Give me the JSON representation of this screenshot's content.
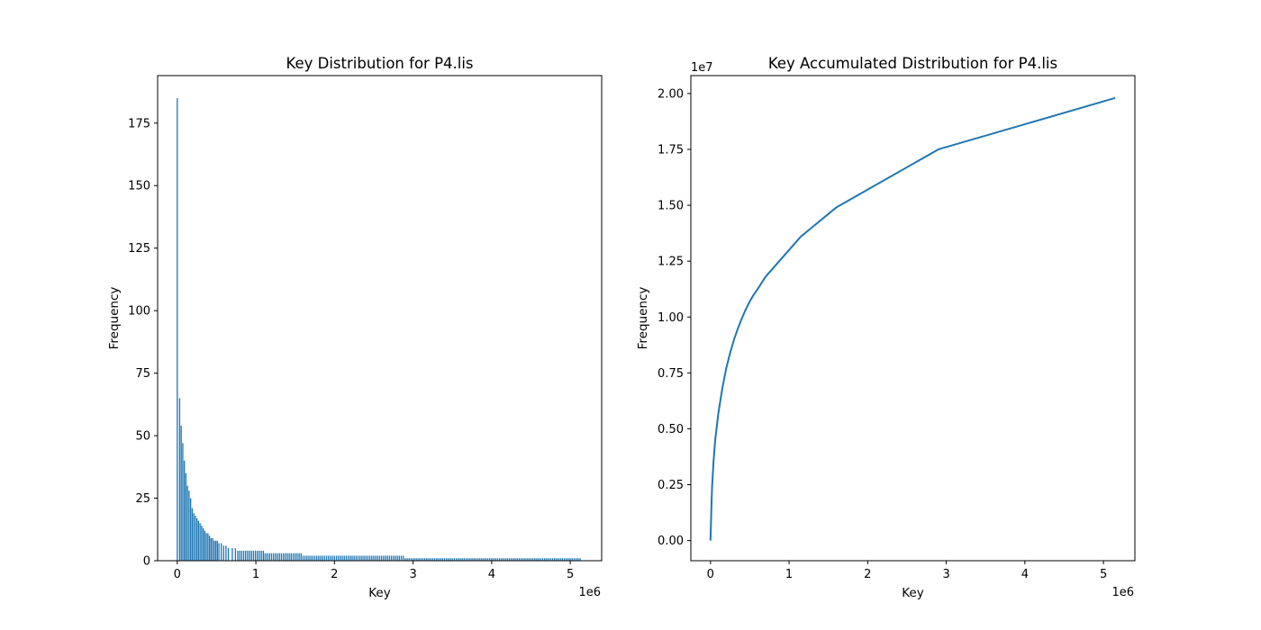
{
  "chart_data": [
    {
      "type": "bar",
      "title": "Key Distribution for P4.lis",
      "xlabel": "Key",
      "ylabel": "Frequency",
      "x_offset_label": "1e6",
      "xlim": [
        -250000,
        5400000
      ],
      "ylim": [
        0,
        194
      ],
      "xticks": [
        0,
        1000000,
        2000000,
        3000000,
        4000000,
        5000000
      ],
      "xtick_labels": [
        "0",
        "1",
        "2",
        "3",
        "4",
        "5"
      ],
      "yticks": [
        0,
        25,
        50,
        75,
        100,
        125,
        150,
        175
      ],
      "ytick_labels": [
        "0",
        "25",
        "50",
        "75",
        "100",
        "125",
        "150",
        "175"
      ],
      "bar_color": "#1f77b4",
      "bar_width_key": 20000,
      "grid": false,
      "series_points": [
        [
          1,
          185
        ],
        [
          30000,
          65
        ],
        [
          50000,
          54
        ],
        [
          70000,
          47
        ],
        [
          90000,
          40
        ],
        [
          110000,
          35
        ],
        [
          130000,
          30
        ],
        [
          150000,
          28
        ],
        [
          170000,
          25
        ],
        [
          190000,
          21
        ],
        [
          210000,
          19
        ],
        [
          230000,
          18
        ],
        [
          250000,
          17
        ],
        [
          270000,
          16
        ],
        [
          290000,
          15
        ],
        [
          310000,
          14
        ],
        [
          330000,
          13
        ],
        [
          350000,
          12
        ],
        [
          370000,
          11
        ],
        [
          390000,
          11
        ],
        [
          410000,
          10
        ],
        [
          430000,
          9
        ],
        [
          450000,
          9
        ],
        [
          470000,
          8
        ],
        [
          490000,
          8
        ],
        [
          510000,
          8
        ],
        [
          530000,
          7
        ],
        [
          560000,
          7
        ],
        [
          590000,
          6
        ],
        [
          620000,
          6
        ],
        [
          650000,
          5
        ],
        [
          700000,
          5
        ],
        [
          740000,
          5
        ]
      ],
      "tail_segments": [
        {
          "from": 770000,
          "to": 1100000,
          "value": 4
        },
        {
          "from": 1100000,
          "to": 1600000,
          "value": 3
        },
        {
          "from": 1600000,
          "to": 2900000,
          "value": 2
        },
        {
          "from": 2900000,
          "to": 5150000,
          "value": 1
        }
      ],
      "tail_spacing": 25000
    },
    {
      "type": "line",
      "title": "Key Accumulated Distribution for P4.lis",
      "xlabel": "Key",
      "ylabel": "Frequency",
      "x_offset_label": "1e6",
      "y_offset_label": "1e7",
      "xlim": [
        -250000,
        5400000
      ],
      "ylim": [
        -900000,
        20800000
      ],
      "xticks": [
        0,
        1000000,
        2000000,
        3000000,
        4000000,
        5000000
      ],
      "xtick_labels": [
        "0",
        "1",
        "2",
        "3",
        "4",
        "5"
      ],
      "yticks": [
        0,
        2500000,
        5000000,
        7500000,
        10000000,
        12500000,
        15000000,
        17500000,
        20000000
      ],
      "ytick_labels": [
        "0.00",
        "0.25",
        "0.50",
        "0.75",
        "1.00",
        "1.25",
        "1.50",
        "1.75",
        "2.00"
      ],
      "line_color": "#1f77b4",
      "grid": false,
      "x": [
        0,
        10000,
        20000,
        40000,
        60000,
        100000,
        150000,
        200000,
        250000,
        300000,
        350000,
        400000,
        450000,
        500000,
        550000,
        600000,
        700000,
        1150000,
        1600000,
        2900000,
        5150000
      ],
      "y": [
        0,
        1300000,
        2400000,
        3600000,
        4500000,
        5700000,
        6800000,
        7700000,
        8400000,
        9000000,
        9500000,
        9950000,
        10350000,
        10700000,
        11000000,
        11250000,
        11800000,
        13600000,
        14900000,
        17500000,
        19800000
      ]
    }
  ]
}
